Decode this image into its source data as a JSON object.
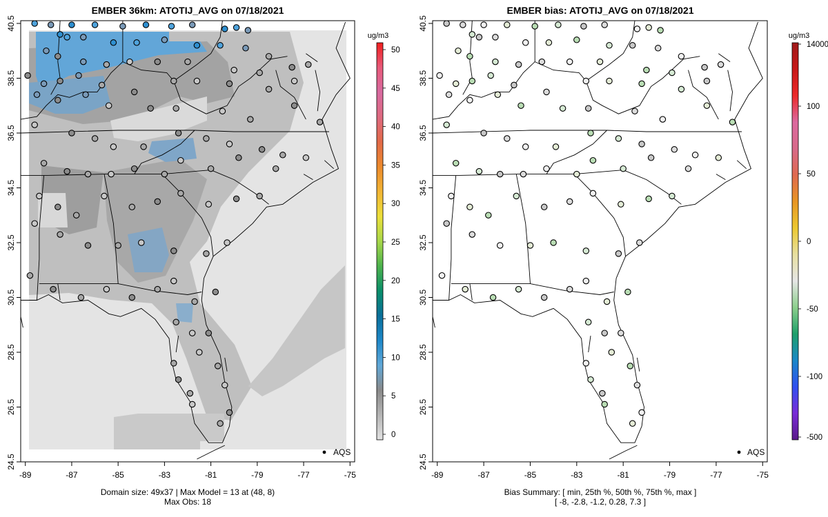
{
  "left_panel": {
    "title": "EMBER 36km: ATOTIJ_AVG on 07/18/2021",
    "footer_line1": "Domain size: 49x37 | Max Model = 13 at (48, 8)",
    "footer_line2": "Max Obs: 18",
    "colorbar_unit": "ug/m3",
    "colorbar_ticks": [
      "0",
      "5",
      "10",
      "15",
      "20",
      "25",
      "30",
      "35",
      "40",
      "45",
      "50"
    ],
    "legend_label": "AQS"
  },
  "right_panel": {
    "title": "EMBER bias: ATOTIJ_AVG on 07/18/2021",
    "footer_line1": "Bias Summary: [ min, 25th %, 50th %, 75th %, max ]",
    "footer_line2": "[ -8,   -2.8,   -1.2,   0.28,   7.3 ]",
    "colorbar_unit": "ug/m3",
    "colorbar_ticks": [
      "-500",
      "-100",
      "-50",
      "0",
      "50",
      "100",
      "14000"
    ],
    "legend_label": "AQS"
  },
  "axes": {
    "x_ticks": [
      "-89",
      "-87",
      "-85",
      "-83",
      "-81",
      "-79",
      "-77",
      "-75"
    ],
    "y_ticks": [
      "24.5",
      "26.5",
      "28.5",
      "30.5",
      "32.5",
      "34.5",
      "36.5",
      "38.5",
      "40.5"
    ]
  },
  "chart_data": [
    {
      "type": "heatmap",
      "title": "EMBER 36km: ATOTIJ_AVG on 07/18/2021",
      "variable": "ATOTIJ_AVG",
      "units": "ug/m3",
      "date": "07/18/2021",
      "xlim": [
        -89.2,
        -74.8
      ],
      "ylim": [
        24.5,
        40.6
      ],
      "domain_size": "49x37",
      "max_model": 13,
      "max_model_location": [
        48,
        8
      ],
      "max_obs": 18,
      "colorbar_range": [
        0,
        51
      ],
      "typical_model_range": [
        2,
        13
      ],
      "observations_layer": "AQS"
    },
    {
      "type": "scatter",
      "title": "EMBER bias: ATOTIJ_AVG on 07/18/2021",
      "variable": "ATOTIJ_AVG bias",
      "units": "ug/m3",
      "date": "07/18/2021",
      "xlim": [
        -89.2,
        -74.8
      ],
      "ylim": [
        24.5,
        40.6
      ],
      "bias_summary": {
        "min": -8,
        "p25": -2.8,
        "median": -1.2,
        "p75": 0.28,
        "max": 7.3
      },
      "observations_layer": "AQS"
    }
  ],
  "sites": [
    [
      -88.6,
      40.5
    ],
    [
      -87.9,
      40.45
    ],
    [
      -87.0,
      40.45
    ],
    [
      -86.0,
      40.45
    ],
    [
      -84.8,
      40.4
    ],
    [
      -83.8,
      40.45
    ],
    [
      -82.7,
      40.4
    ],
    [
      -81.8,
      40.45
    ],
    [
      -80.4,
      40.3
    ],
    [
      -79.9,
      40.35
    ],
    [
      -79.4,
      40.25
    ],
    [
      -87.5,
      40.1
    ],
    [
      -87.2,
      40.0
    ],
    [
      -86.5,
      40.0
    ],
    [
      -85.2,
      39.8
    ],
    [
      -84.2,
      39.8
    ],
    [
      -83.0,
      39.9
    ],
    [
      -81.6,
      39.7
    ],
    [
      -80.6,
      39.7
    ],
    [
      -79.5,
      39.6
    ],
    [
      -78.5,
      39.3
    ],
    [
      -88.1,
      39.5
    ],
    [
      -87.6,
      39.3
    ],
    [
      -86.5,
      39.1
    ],
    [
      -85.5,
      39.0
    ],
    [
      -84.5,
      39.1
    ],
    [
      -83.3,
      39.1
    ],
    [
      -82.0,
      39.1
    ],
    [
      -80.0,
      38.8
    ],
    [
      -78.9,
      38.7
    ],
    [
      -77.5,
      38.9
    ],
    [
      -76.8,
      39.0
    ],
    [
      -88.9,
      38.6
    ],
    [
      -88.2,
      38.3
    ],
    [
      -87.5,
      38.4
    ],
    [
      -86.7,
      38.6
    ],
    [
      -85.7,
      38.25
    ],
    [
      -84.3,
      38.0
    ],
    [
      -82.6,
      38.4
    ],
    [
      -81.6,
      38.4
    ],
    [
      -80.2,
      38.3
    ],
    [
      -78.5,
      38.1
    ],
    [
      -77.4,
      38.4
    ],
    [
      -88.5,
      37.9
    ],
    [
      -87.6,
      37.7
    ],
    [
      -86.4,
      37.9
    ],
    [
      -85.4,
      37.5
    ],
    [
      -83.6,
      37.4
    ],
    [
      -82.5,
      37.4
    ],
    [
      -80.5,
      37.3
    ],
    [
      -79.3,
      37.0
    ],
    [
      -77.4,
      37.5
    ],
    [
      -76.3,
      36.9
    ],
    [
      -88.6,
      36.8
    ],
    [
      -87.0,
      36.5
    ],
    [
      -86.0,
      36.3
    ],
    [
      -85.2,
      36.0
    ],
    [
      -83.9,
      36.0
    ],
    [
      -82.4,
      36.5
    ],
    [
      -81.2,
      36.3
    ],
    [
      -80.2,
      36.1
    ],
    [
      -78.8,
      35.9
    ],
    [
      -77.9,
      35.7
    ],
    [
      -76.9,
      35.6
    ],
    [
      -88.2,
      35.4
    ],
    [
      -87.2,
      35.1
    ],
    [
      -86.3,
      35.0
    ],
    [
      -85.3,
      35.0
    ],
    [
      -84.3,
      35.2
    ],
    [
      -83.0,
      35.0
    ],
    [
      -82.3,
      35.5
    ],
    [
      -81.0,
      35.2
    ],
    [
      -79.8,
      35.6
    ],
    [
      -78.2,
      35.2
    ],
    [
      -88.4,
      34.2
    ],
    [
      -87.6,
      33.8
    ],
    [
      -86.8,
      33.5
    ],
    [
      -85.6,
      34.2
    ],
    [
      -84.4,
      33.8
    ],
    [
      -83.3,
      34.0
    ],
    [
      -82.3,
      34.3
    ],
    [
      -81.1,
      33.9
    ],
    [
      -79.9,
      34.1
    ],
    [
      -78.9,
      34.2
    ],
    [
      -88.6,
      33.2
    ],
    [
      -87.5,
      32.8
    ],
    [
      -86.3,
      32.4
    ],
    [
      -85.0,
      32.4
    ],
    [
      -84.0,
      32.5
    ],
    [
      -82.6,
      32.2
    ],
    [
      -81.2,
      32.1
    ],
    [
      -80.3,
      32.5
    ],
    [
      -88.8,
      31.3
    ],
    [
      -87.8,
      30.8
    ],
    [
      -86.6,
      30.5
    ],
    [
      -85.5,
      30.8
    ],
    [
      -84.4,
      30.5
    ],
    [
      -83.3,
      30.8
    ],
    [
      -82.6,
      31.1
    ],
    [
      -81.7,
      30.35
    ],
    [
      -80.8,
      30.7
    ],
    [
      -82.5,
      29.6
    ],
    [
      -81.8,
      29.2
    ],
    [
      -81.1,
      29.2
    ],
    [
      -82.6,
      28.1
    ],
    [
      -81.5,
      28.5
    ],
    [
      -80.7,
      28.0
    ],
    [
      -82.4,
      27.5
    ],
    [
      -81.9,
      27.0
    ],
    [
      -80.4,
      27.3
    ],
    [
      -80.2,
      26.3
    ],
    [
      -80.6,
      25.9
    ],
    [
      -81.8,
      26.6
    ]
  ],
  "colors": {
    "model_scale": [
      "#e6e6e6",
      "#c8c8c8",
      "#a8a8a8",
      "#8c8c8c",
      "#7a9ab8",
      "#4fa3dc",
      "#2e8fd0"
    ],
    "outside_domain": "#ffffff",
    "site_bias_palette": [
      "#f2f2f2",
      "#dcdcdc",
      "#c8c8c8",
      "#d6ead4",
      "#b9ddb4",
      "#e4ecd6"
    ]
  },
  "colorbars": {
    "left_stops": [
      "#e2e2e2",
      "#b5b5b5",
      "#8a8a8a",
      "#60a8d8",
      "#1e88c9",
      "#0a6f9a",
      "#0a8f6a",
      "#4db34d",
      "#a8d84a",
      "#ecdf3a",
      "#f2b534",
      "#ec8a2c",
      "#e26a48",
      "#de6a80",
      "#d86aa0",
      "#e85a7a",
      "#f01e1e"
    ],
    "right_stops": [
      "#5a1a8a",
      "#7a2cd8",
      "#3050f0",
      "#1a88c8",
      "#1ea06a",
      "#8ccf8c",
      "#e6e6e6",
      "#e8e0a0",
      "#ecc830",
      "#e89624",
      "#e06a50",
      "#d86a8a",
      "#dc6aa0",
      "#ec2a2a",
      "#c81818",
      "#a01a1a"
    ]
  }
}
